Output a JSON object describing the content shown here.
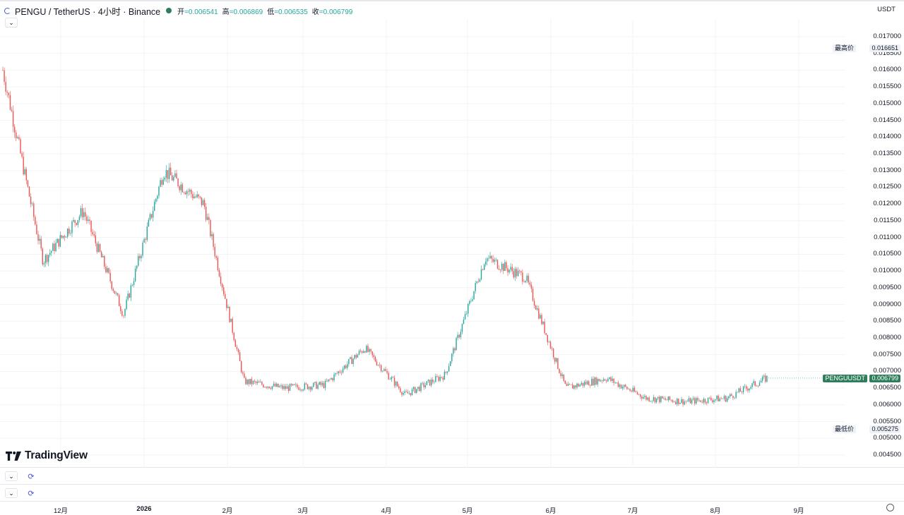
{
  "header": {
    "title": "PENGU / TetherUS · 4小时 · Binance",
    "ohlc": [
      {
        "label": "开",
        "value": "=0.006541"
      },
      {
        "label": "高",
        "value": "=0.006869"
      },
      {
        "label": "低",
        "value": "=0.006535"
      },
      {
        "label": "收",
        "value": "=0.006799"
      }
    ]
  },
  "currency": "USDT",
  "logo_text": "TradingView",
  "tags": {
    "high_label": "最高价",
    "high_value": "0.016651",
    "low_label": "最低价",
    "low_value": "0.005275",
    "symbol": "PENGUUSDT",
    "last_value": "0.006799"
  },
  "colors": {
    "up": "#26a69a",
    "down": "#ef5350",
    "tag_green": "#2e7d5b",
    "tag_bg": "#eef1f7"
  },
  "chart_data": {
    "type": "candlestick",
    "title": "PENGU / TetherUS · 4小时 · Binance",
    "y_ticks": [
      "0.017000",
      "0.016500",
      "0.016000",
      "0.015500",
      "0.015000",
      "0.014500",
      "0.014000",
      "0.013500",
      "0.013000",
      "0.012500",
      "0.012000",
      "0.011500",
      "0.011000",
      "0.010500",
      "0.010000",
      "0.009500",
      "0.009000",
      "0.008500",
      "0.008000",
      "0.007500",
      "0.007000",
      "0.006500",
      "0.006000",
      "0.005500",
      "0.005000",
      "0.004500"
    ],
    "x_ticks": [
      "12月",
      "2026",
      "2月",
      "3月",
      "4月",
      "5月",
      "6月",
      "7月",
      "8月",
      "9月"
    ],
    "ylim": [
      0.0044,
      0.0174
    ],
    "grid": true,
    "series": [
      {
        "name": "PENGUUSDT",
        "dates": [
          "11月上旬",
          "11月中旬",
          "12月初",
          "12月中旬",
          "1月初",
          "1月中旬",
          "2月初",
          "2月中旬",
          "3月初",
          "3月中旬",
          "4月初",
          "4月中旬",
          "5月初",
          "5月中旬",
          "6月初",
          "6月中旬",
          "7月初",
          "7月中旬",
          "8月初",
          "8月中旬"
        ],
        "values": [
          0.016,
          0.0103,
          0.0118,
          0.0087,
          0.013,
          0.012,
          0.0067,
          0.0065,
          0.0066,
          0.0077,
          0.0063,
          0.0069,
          0.0104,
          0.0098,
          0.0065,
          0.0068,
          0.0062,
          0.0061,
          0.0062,
          0.0068
        ]
      }
    ]
  }
}
